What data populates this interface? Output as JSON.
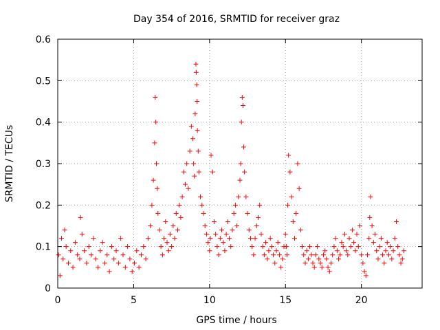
{
  "chart_data": {
    "type": "scatter",
    "title": "Day 354 of 2016, SRMTID for receiver graz",
    "xlabel": "GPS time / hours",
    "ylabel": "SRMTID / TECUs",
    "xlim": [
      0,
      24
    ],
    "ylim": [
      0,
      0.6
    ],
    "x_ticks": [
      0,
      5,
      10,
      15,
      20
    ],
    "x_tick_labels": [
      "0",
      "5",
      "10",
      "15",
      "20"
    ],
    "y_ticks": [
      0,
      0.1,
      0.2,
      0.3,
      0.4,
      0.5,
      0.6
    ],
    "y_tick_labels": [
      "0",
      "0.1",
      "0.2",
      "0.3",
      "0.4",
      "0.5",
      "0.6"
    ],
    "grid": true,
    "marker": "plus",
    "color": "#ff0000",
    "series": [
      {
        "name": "SRMTID",
        "x": [
          0.05,
          0.15,
          0.25,
          0.35,
          0.45,
          0.55,
          0.7,
          0.85,
          1.0,
          1.15,
          1.3,
          1.45,
          1.5,
          1.6,
          1.75,
          1.9,
          2.05,
          2.2,
          2.35,
          2.5,
          2.65,
          2.8,
          2.95,
          3.1,
          3.25,
          3.4,
          3.55,
          3.7,
          3.85,
          4.0,
          4.15,
          4.3,
          4.45,
          4.6,
          4.75,
          4.9,
          5.05,
          5.2,
          5.35,
          5.5,
          5.65,
          5.8,
          5.95,
          6.1,
          6.2,
          6.3,
          6.38,
          6.42,
          6.46,
          6.5,
          6.55,
          6.6,
          6.7,
          6.8,
          6.9,
          7.0,
          7.1,
          7.2,
          7.3,
          7.4,
          7.5,
          7.6,
          7.7,
          7.8,
          7.9,
          8.0,
          8.1,
          8.2,
          8.3,
          8.4,
          8.5,
          8.6,
          8.7,
          8.8,
          8.9,
          8.95,
          9.0,
          9.05,
          9.1,
          9.12,
          9.15,
          9.18,
          9.2,
          9.25,
          9.3,
          9.4,
          9.5,
          9.6,
          9.7,
          9.8,
          9.9,
          10.0,
          10.05,
          10.1,
          10.2,
          10.3,
          10.4,
          10.5,
          10.6,
          10.7,
          10.8,
          10.9,
          11.0,
          11.1,
          11.2,
          11.3,
          11.4,
          11.5,
          11.6,
          11.7,
          11.8,
          11.9,
          12.0,
          12.05,
          12.1,
          12.15,
          12.2,
          12.25,
          12.3,
          12.4,
          12.5,
          12.6,
          12.7,
          12.8,
          12.9,
          13.0,
          13.1,
          13.2,
          13.3,
          13.4,
          13.5,
          13.6,
          13.7,
          13.8,
          13.9,
          14.0,
          14.1,
          14.2,
          14.3,
          14.4,
          14.5,
          14.6,
          14.7,
          14.8,
          14.9,
          15.0,
          15.05,
          15.1,
          15.15,
          15.2,
          15.3,
          15.4,
          15.5,
          15.6,
          15.7,
          15.8,
          15.9,
          16.0,
          16.1,
          16.2,
          16.3,
          16.4,
          16.5,
          16.6,
          16.7,
          16.8,
          16.9,
          17.0,
          17.1,
          17.2,
          17.3,
          17.4,
          17.5,
          17.6,
          17.7,
          17.8,
          17.9,
          18.0,
          18.1,
          18.2,
          18.3,
          18.4,
          18.5,
          18.6,
          18.7,
          18.8,
          18.9,
          19.0,
          19.1,
          19.2,
          19.3,
          19.4,
          19.5,
          19.6,
          19.7,
          19.8,
          19.9,
          20.0,
          20.1,
          20.2,
          20.3,
          20.4,
          20.5,
          20.55,
          20.6,
          20.7,
          20.8,
          20.9,
          21.0,
          21.1,
          21.2,
          21.3,
          21.4,
          21.5,
          21.6,
          21.7,
          21.8,
          21.9,
          22.0,
          22.1,
          22.2,
          22.3,
          22.4,
          22.5,
          22.6,
          22.7,
          22.8
        ],
        "y": [
          0.08,
          0.03,
          0.12,
          0.07,
          0.14,
          0.1,
          0.06,
          0.09,
          0.05,
          0.11,
          0.08,
          0.07,
          0.17,
          0.13,
          0.09,
          0.06,
          0.1,
          0.08,
          0.12,
          0.07,
          0.05,
          0.09,
          0.11,
          0.06,
          0.08,
          0.04,
          0.1,
          0.07,
          0.09,
          0.06,
          0.12,
          0.08,
          0.05,
          0.1,
          0.07,
          0.04,
          0.06,
          0.09,
          0.05,
          0.08,
          0.1,
          0.07,
          0.12,
          0.15,
          0.2,
          0.26,
          0.35,
          0.46,
          0.4,
          0.3,
          0.24,
          0.18,
          0.14,
          0.1,
          0.08,
          0.12,
          0.16,
          0.11,
          0.09,
          0.13,
          0.1,
          0.15,
          0.12,
          0.18,
          0.14,
          0.2,
          0.17,
          0.22,
          0.28,
          0.25,
          0.3,
          0.24,
          0.33,
          0.39,
          0.36,
          0.3,
          0.27,
          0.42,
          0.54,
          0.52,
          0.49,
          0.45,
          0.38,
          0.33,
          0.28,
          0.22,
          0.2,
          0.18,
          0.15,
          0.13,
          0.11,
          0.09,
          0.12,
          0.32,
          0.28,
          0.16,
          0.13,
          0.1,
          0.08,
          0.12,
          0.14,
          0.11,
          0.09,
          0.13,
          0.16,
          0.12,
          0.1,
          0.14,
          0.18,
          0.2,
          0.15,
          0.22,
          0.26,
          0.3,
          0.4,
          0.46,
          0.44,
          0.34,
          0.28,
          0.22,
          0.18,
          0.14,
          0.12,
          0.1,
          0.08,
          0.12,
          0.15,
          0.17,
          0.2,
          0.13,
          0.1,
          0.08,
          0.11,
          0.07,
          0.09,
          0.12,
          0.1,
          0.08,
          0.06,
          0.09,
          0.11,
          0.08,
          0.05,
          0.07,
          0.1,
          0.13,
          0.1,
          0.08,
          0.2,
          0.32,
          0.28,
          0.22,
          0.16,
          0.12,
          0.18,
          0.3,
          0.24,
          0.14,
          0.1,
          0.08,
          0.06,
          0.09,
          0.07,
          0.1,
          0.08,
          0.06,
          0.05,
          0.08,
          0.1,
          0.07,
          0.06,
          0.05,
          0.08,
          0.09,
          0.07,
          0.05,
          0.04,
          0.06,
          0.08,
          0.1,
          0.12,
          0.09,
          0.07,
          0.08,
          0.11,
          0.1,
          0.13,
          0.09,
          0.08,
          0.12,
          0.1,
          0.14,
          0.11,
          0.09,
          0.13,
          0.1,
          0.15,
          0.08,
          0.06,
          0.04,
          0.03,
          0.08,
          0.12,
          0.17,
          0.22,
          0.15,
          0.11,
          0.13,
          0.09,
          0.07,
          0.1,
          0.12,
          0.08,
          0.06,
          0.09,
          0.11,
          0.08,
          0.1,
          0.07,
          0.09,
          0.12,
          0.16,
          0.1,
          0.08,
          0.06,
          0.07,
          0.09
        ]
      }
    ]
  }
}
